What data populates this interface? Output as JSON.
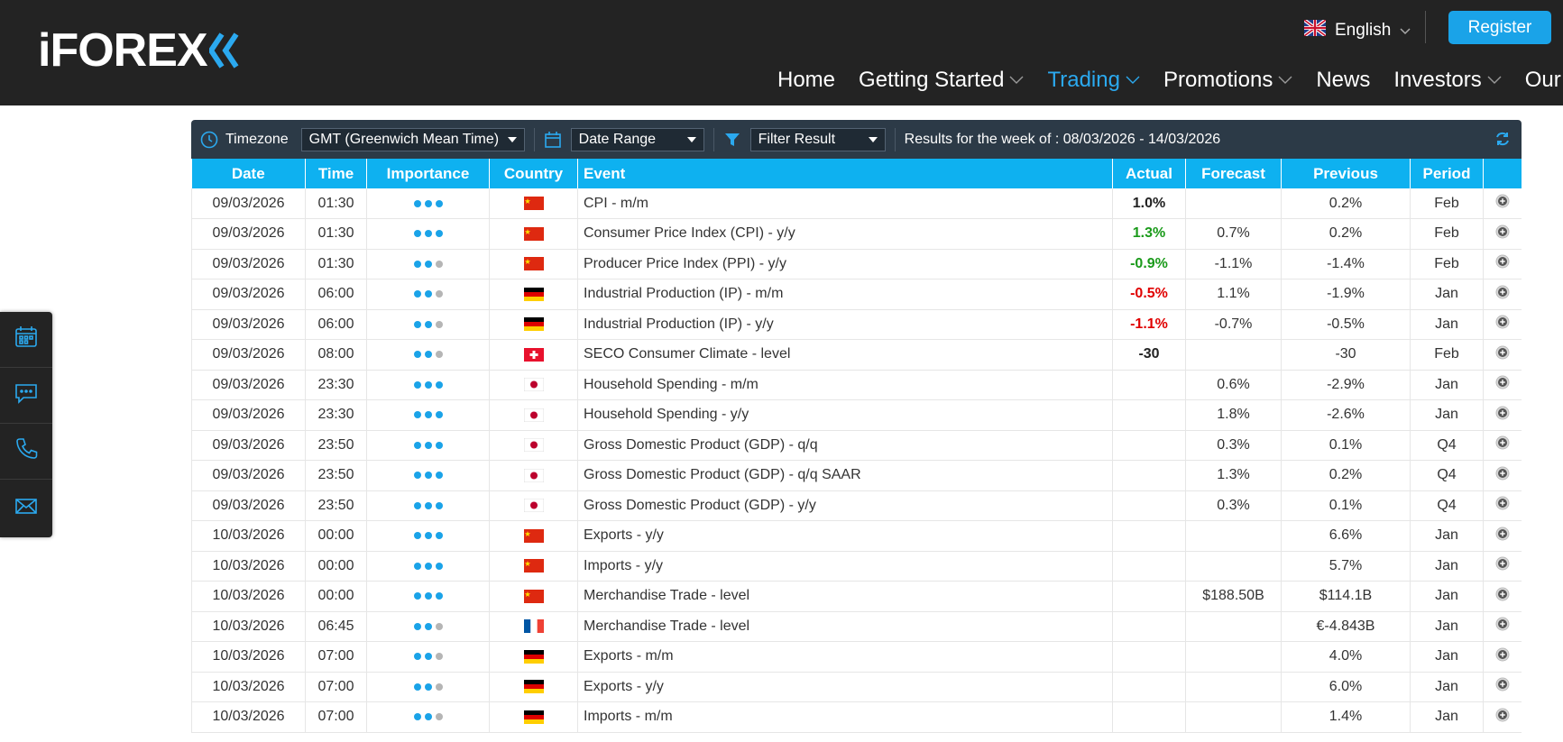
{
  "header": {
    "logo_text": "iFOREX",
    "language": "English",
    "register_label": "Register",
    "nav": [
      {
        "label": "Home",
        "dropdown": false,
        "active": false
      },
      {
        "label": "Getting Started",
        "dropdown": true,
        "active": false
      },
      {
        "label": "Trading",
        "dropdown": true,
        "active": true
      },
      {
        "label": "Promotions",
        "dropdown": true,
        "active": false
      },
      {
        "label": "News",
        "dropdown": false,
        "active": false
      },
      {
        "label": "Investors",
        "dropdown": true,
        "active": false
      },
      {
        "label": "Our",
        "dropdown": false,
        "active": false
      }
    ]
  },
  "sidebar": {
    "items": [
      "calendar-icon",
      "chat-icon",
      "phone-icon",
      "mail-icon"
    ]
  },
  "filters": {
    "timezone_label": "Timezone",
    "timezone_value": "GMT (Greenwich Mean Time)",
    "date_range_value": "Date Range",
    "filter_value": "Filter Result",
    "results_text": "Results for the week of : 08/03/2026 - 14/03/2026"
  },
  "colors": {
    "header_bg": "#232323",
    "accent": "#0eb1f0",
    "positive": "#1a9a1a",
    "negative": "#e00000",
    "dot_on": "#1aa3e8",
    "dot_off": "#b5b5b5"
  },
  "table": {
    "columns": [
      "Date",
      "Time",
      "Importance",
      "Country",
      "Event",
      "Actual",
      "Forecast",
      "Previous",
      "Period"
    ],
    "rows": [
      {
        "date": "09/03/2026",
        "time": "01:30",
        "importance": 3,
        "country": "CN",
        "event": "CPI - m/m",
        "actual": "1.0%",
        "actual_tone": "neutral",
        "forecast": "",
        "previous": "0.2%",
        "period": "Feb"
      },
      {
        "date": "09/03/2026",
        "time": "01:30",
        "importance": 3,
        "country": "CN",
        "event": "Consumer Price Index (CPI) - y/y",
        "actual": "1.3%",
        "actual_tone": "positive",
        "forecast": "0.7%",
        "previous": "0.2%",
        "period": "Feb"
      },
      {
        "date": "09/03/2026",
        "time": "01:30",
        "importance": 2,
        "country": "CN",
        "event": "Producer Price Index (PPI) - y/y",
        "actual": "-0.9%",
        "actual_tone": "positive",
        "forecast": "-1.1%",
        "previous": "-1.4%",
        "period": "Feb"
      },
      {
        "date": "09/03/2026",
        "time": "06:00",
        "importance": 2,
        "country": "DE",
        "event": "Industrial Production (IP) - m/m",
        "actual": "-0.5%",
        "actual_tone": "negative",
        "forecast": "1.1%",
        "previous": "-1.9%",
        "period": "Jan"
      },
      {
        "date": "09/03/2026",
        "time": "06:00",
        "importance": 2,
        "country": "DE",
        "event": "Industrial Production (IP) - y/y",
        "actual": "-1.1%",
        "actual_tone": "negative",
        "forecast": "-0.7%",
        "previous": "-0.5%",
        "period": "Jan"
      },
      {
        "date": "09/03/2026",
        "time": "08:00",
        "importance": 2,
        "country": "CH",
        "event": "SECO Consumer Climate - level",
        "actual": "-30",
        "actual_tone": "neutral",
        "forecast": "",
        "previous": "-30",
        "period": "Feb"
      },
      {
        "date": "09/03/2026",
        "time": "23:30",
        "importance": 3,
        "country": "JP",
        "event": "Household Spending - m/m",
        "actual": "",
        "actual_tone": "neutral",
        "forecast": "0.6%",
        "previous": "-2.9%",
        "period": "Jan"
      },
      {
        "date": "09/03/2026",
        "time": "23:30",
        "importance": 3,
        "country": "JP",
        "event": "Household Spending - y/y",
        "actual": "",
        "actual_tone": "neutral",
        "forecast": "1.8%",
        "previous": "-2.6%",
        "period": "Jan"
      },
      {
        "date": "09/03/2026",
        "time": "23:50",
        "importance": 3,
        "country": "JP",
        "event": "Gross Domestic Product (GDP) - q/q",
        "actual": "",
        "actual_tone": "neutral",
        "forecast": "0.3%",
        "previous": "0.1%",
        "period": "Q4"
      },
      {
        "date": "09/03/2026",
        "time": "23:50",
        "importance": 3,
        "country": "JP",
        "event": "Gross Domestic Product (GDP) - q/q SAAR",
        "actual": "",
        "actual_tone": "neutral",
        "forecast": "1.3%",
        "previous": "0.2%",
        "period": "Q4"
      },
      {
        "date": "09/03/2026",
        "time": "23:50",
        "importance": 3,
        "country": "JP",
        "event": "Gross Domestic Product (GDP) - y/y",
        "actual": "",
        "actual_tone": "neutral",
        "forecast": "0.3%",
        "previous": "0.1%",
        "period": "Q4"
      },
      {
        "date": "10/03/2026",
        "time": "00:00",
        "importance": 3,
        "country": "CN",
        "event": "Exports - y/y",
        "actual": "",
        "actual_tone": "neutral",
        "forecast": "",
        "previous": "6.6%",
        "period": "Jan"
      },
      {
        "date": "10/03/2026",
        "time": "00:00",
        "importance": 3,
        "country": "CN",
        "event": "Imports - y/y",
        "actual": "",
        "actual_tone": "neutral",
        "forecast": "",
        "previous": "5.7%",
        "period": "Jan"
      },
      {
        "date": "10/03/2026",
        "time": "00:00",
        "importance": 3,
        "country": "CN",
        "event": "Merchandise Trade - level",
        "actual": "",
        "actual_tone": "neutral",
        "forecast": "$188.50B",
        "previous": "$114.1B",
        "period": "Jan"
      },
      {
        "date": "10/03/2026",
        "time": "06:45",
        "importance": 2,
        "country": "FR",
        "event": "Merchandise Trade - level",
        "actual": "",
        "actual_tone": "neutral",
        "forecast": "",
        "previous": "€-4.843B",
        "period": "Jan"
      },
      {
        "date": "10/03/2026",
        "time": "07:00",
        "importance": 2,
        "country": "DE",
        "event": "Exports - m/m",
        "actual": "",
        "actual_tone": "neutral",
        "forecast": "",
        "previous": "4.0%",
        "period": "Jan"
      },
      {
        "date": "10/03/2026",
        "time": "07:00",
        "importance": 2,
        "country": "DE",
        "event": "Exports - y/y",
        "actual": "",
        "actual_tone": "neutral",
        "forecast": "",
        "previous": "6.0%",
        "period": "Jan"
      },
      {
        "date": "10/03/2026",
        "time": "07:00",
        "importance": 2,
        "country": "DE",
        "event": "Imports - m/m",
        "actual": "",
        "actual_tone": "neutral",
        "forecast": "",
        "previous": "1.4%",
        "period": "Jan"
      }
    ]
  }
}
